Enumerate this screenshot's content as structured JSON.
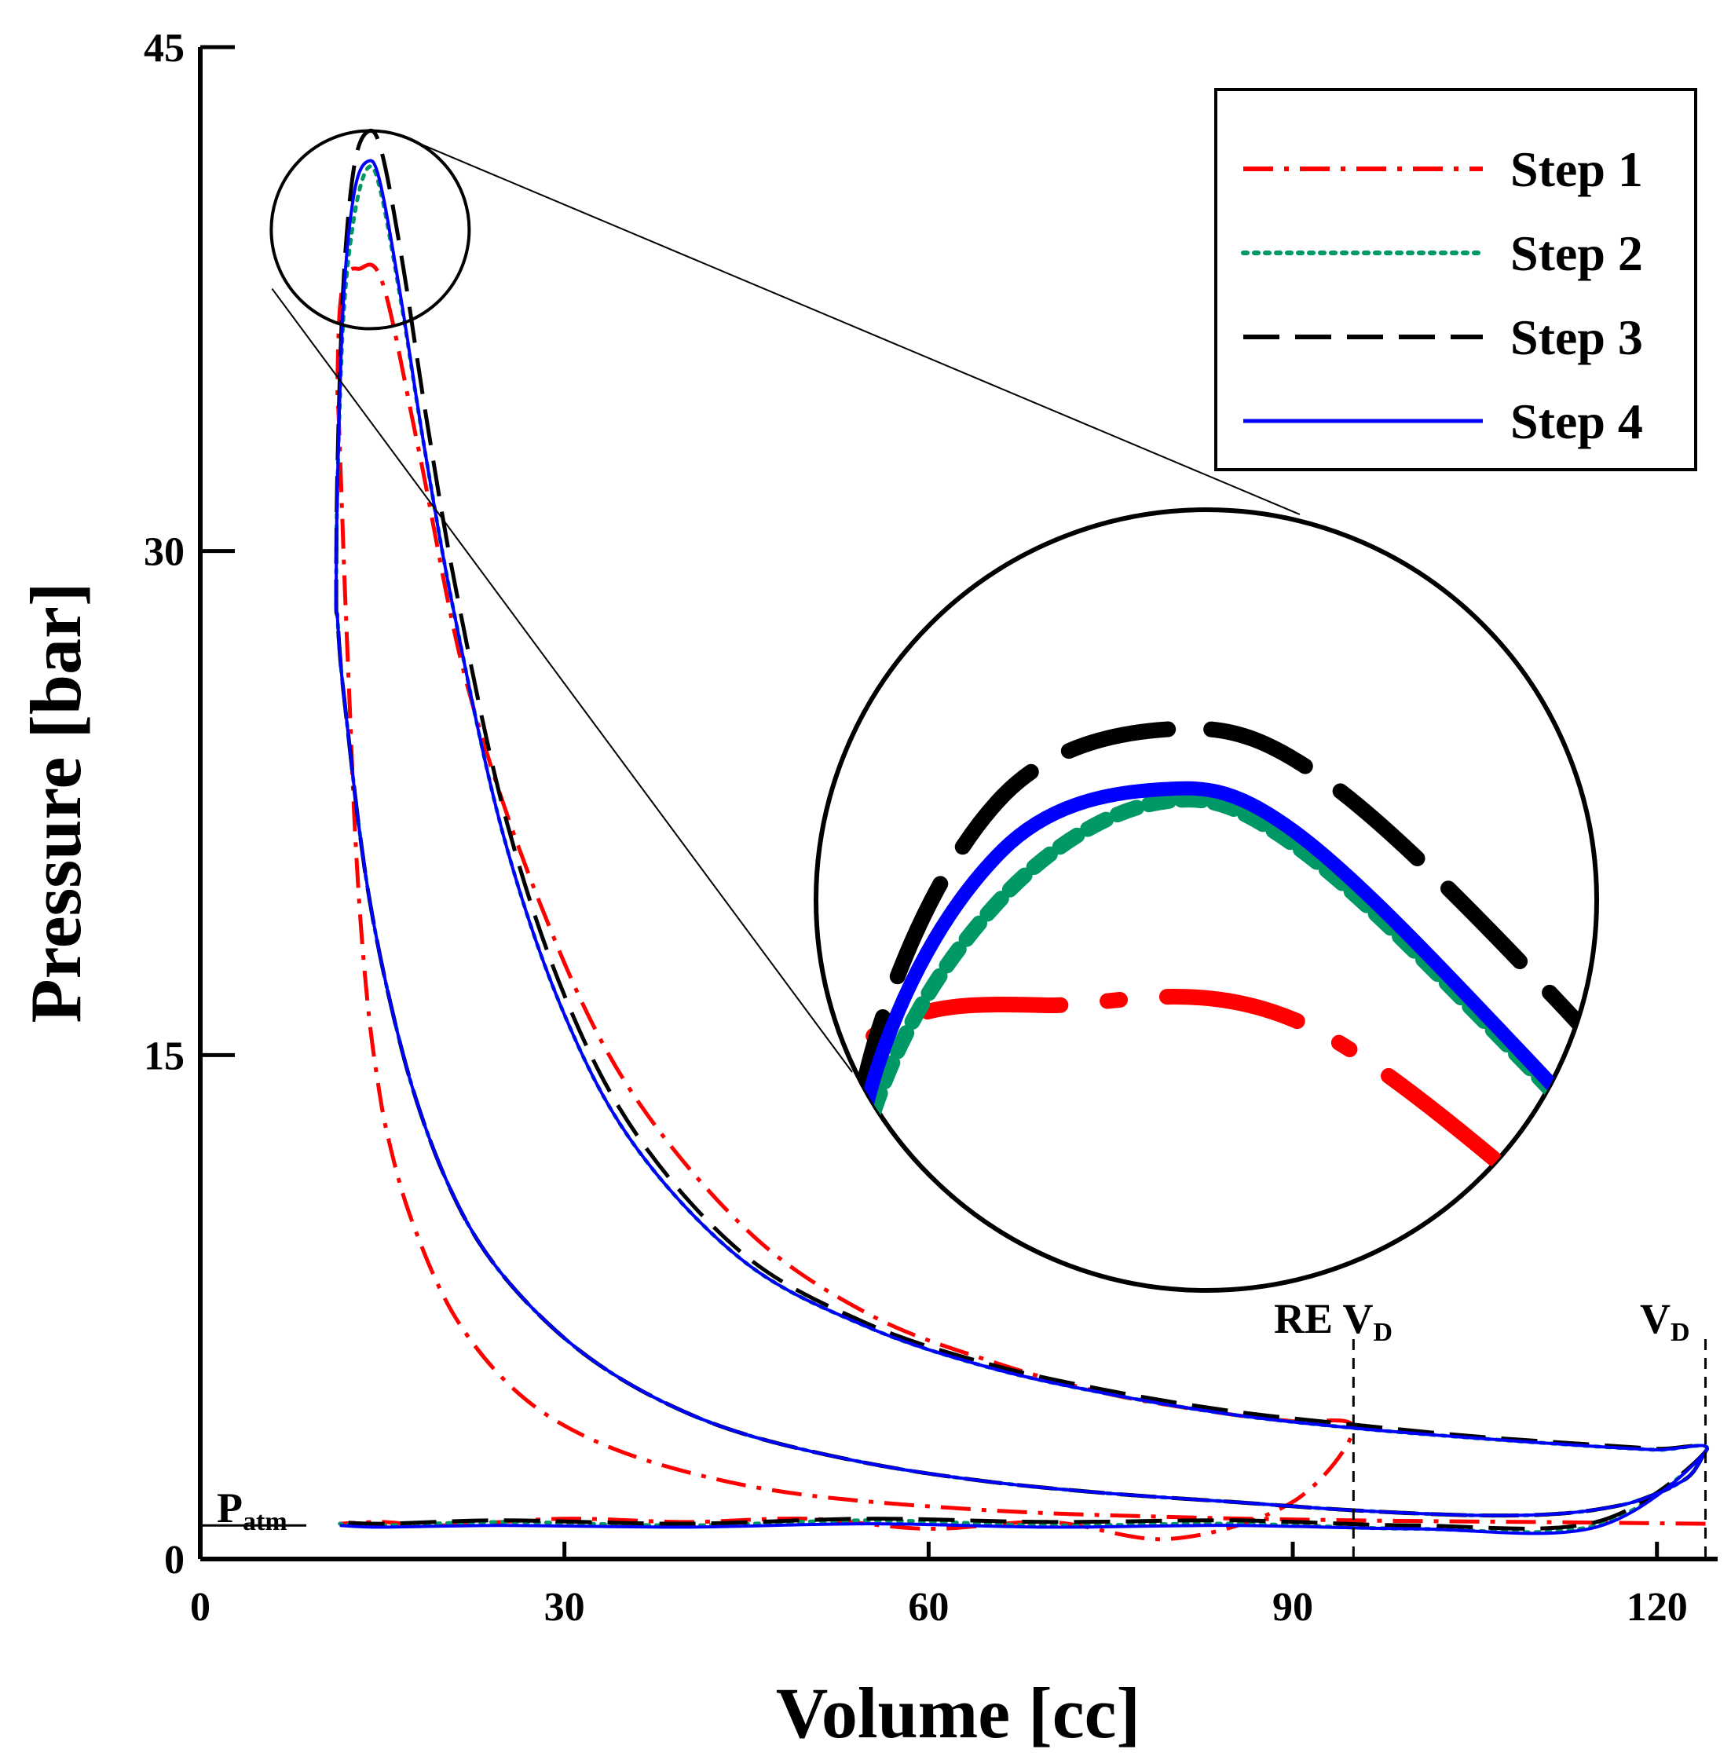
{
  "chart_data": {
    "type": "line",
    "title": "",
    "xlabel": "Volume [cc]",
    "ylabel": "Pressure [bar]",
    "xlim": [
      0,
      125
    ],
    "ylim": [
      0,
      45
    ],
    "xticks": [
      0,
      30,
      60,
      90,
      120
    ],
    "yticks": [
      0,
      15,
      30,
      45
    ],
    "xtick_labels": [
      "0",
      "30",
      "60",
      "90",
      "120"
    ],
    "ytick_labels": [
      "0",
      "15",
      "30",
      "45"
    ],
    "legend_position": "top-right",
    "series": [
      {
        "name": "Step 1",
        "style": "dash-dot",
        "color": "#ff0000",
        "x": [
          124,
          110,
          95,
          80,
          65,
          50,
          40,
          32,
          26,
          21,
          17.5,
          15.5,
          14.5,
          13.8,
          13.2,
          12.7,
          12.3,
          11.9,
          11.6,
          11.4,
          11.3,
          11.5,
          12,
          13,
          15,
          18,
          22,
          28,
          35,
          45,
          55,
          65,
          75,
          85,
          90,
          95,
          90,
          80,
          70,
          60,
          50,
          40,
          30,
          20,
          15,
          11.5
        ],
        "y": [
          1.05,
          1.1,
          1.15,
          1.25,
          1.45,
          1.9,
          2.6,
          3.6,
          5.0,
          7.2,
          10.0,
          12.5,
          14.5,
          16.5,
          19.0,
          22.0,
          25.5,
          29.0,
          32.0,
          34.0,
          35.0,
          37.2,
          38.2,
          38.4,
          38.0,
          33.0,
          26.0,
          19.5,
          14.2,
          9.8,
          7.3,
          5.9,
          4.9,
          4.3,
          4.1,
          3.9,
          1.7,
          0.6,
          1.1,
          0.9,
          1.2,
          1.1,
          1.2,
          1.0,
          1.1,
          1.05
        ],
        "labels": []
      },
      {
        "name": "Step 2",
        "style": "dotted",
        "color": "#009966",
        "x": [
          124,
          123,
          122,
          120,
          117,
          112,
          105,
          95,
          85,
          75,
          65,
          55,
          45,
          38,
          32,
          27,
          23,
          20,
          17.5,
          15.5,
          14,
          13,
          12.2,
          11.6,
          11.3,
          11.2,
          11.3,
          11.8,
          12.7,
          13.8,
          14.8,
          16.5,
          18.5,
          21,
          25,
          30,
          36,
          45,
          55,
          65,
          75,
          85,
          95,
          105,
          115,
          120,
          124,
          115,
          100,
          85,
          70,
          55,
          40,
          25,
          15,
          11.5
        ],
        "y": [
          3.2,
          2.6,
          2.3,
          1.95,
          1.6,
          1.35,
          1.3,
          1.45,
          1.7,
          1.95,
          2.3,
          2.85,
          3.7,
          4.7,
          6.0,
          7.6,
          9.4,
          11.5,
          14.0,
          16.8,
          19.5,
          22.0,
          24.5,
          26.5,
          28.0,
          28.6,
          32.0,
          37.0,
          40.0,
          41.4,
          40.8,
          37.5,
          33.0,
          28.0,
          21.5,
          16.2,
          12.2,
          8.8,
          6.9,
          5.7,
          4.9,
          4.3,
          3.9,
          3.6,
          3.35,
          3.25,
          3.2,
          1.0,
          0.9,
          1.05,
          1.0,
          1.15,
          1.0,
          1.1,
          1.0,
          1.05
        ],
        "labels": []
      },
      {
        "name": "Step 3",
        "style": "dashed",
        "color": "#000000",
        "x": [
          124,
          123,
          122,
          120,
          117,
          112,
          105,
          95,
          85,
          75,
          65,
          55,
          45,
          38,
          32,
          27,
          23,
          20,
          17.5,
          15.5,
          14,
          13,
          12.2,
          11.6,
          11.3,
          11.2,
          11.3,
          11.8,
          12.7,
          13.9,
          15,
          16.7,
          18.7,
          21.2,
          25.2,
          30.2,
          36.2,
          45,
          55,
          65,
          75,
          85,
          95,
          105,
          115,
          120,
          124,
          115,
          100,
          85,
          70,
          55,
          40,
          25,
          15,
          11.5
        ],
        "y": [
          3.2,
          2.6,
          2.3,
          1.95,
          1.6,
          1.35,
          1.3,
          1.45,
          1.7,
          1.95,
          2.3,
          2.85,
          3.7,
          4.7,
          6.0,
          7.6,
          9.4,
          11.5,
          14.0,
          16.8,
          19.5,
          22.0,
          24.5,
          26.5,
          28.0,
          28.6,
          32.5,
          38.0,
          41.5,
          42.5,
          41.8,
          38.5,
          33.8,
          28.6,
          22.0,
          16.6,
          12.5,
          9.0,
          7.0,
          5.8,
          5.0,
          4.4,
          4.0,
          3.65,
          3.4,
          3.28,
          3.2,
          1.1,
          1.0,
          1.15,
          1.1,
          1.2,
          1.05,
          1.15,
          1.05,
          1.1
        ],
        "labels": []
      },
      {
        "name": "Step 4",
        "style": "solid",
        "color": "#0000ff",
        "x": [
          124,
          123,
          122,
          120,
          117,
          112,
          105,
          95,
          85,
          75,
          65,
          55,
          45,
          38,
          32,
          27,
          23,
          20,
          17.5,
          15.5,
          14,
          13,
          12.2,
          11.6,
          11.3,
          11.2,
          11.3,
          11.8,
          12.7,
          13.8,
          14.8,
          16.5,
          18.5,
          21,
          25,
          30,
          36,
          45,
          55,
          65,
          75,
          85,
          95,
          105,
          115,
          120,
          124,
          115,
          100,
          85,
          70,
          55,
          40,
          25,
          15,
          11.5
        ],
        "y": [
          3.2,
          2.6,
          2.3,
          1.95,
          1.6,
          1.35,
          1.3,
          1.45,
          1.7,
          1.95,
          2.3,
          2.85,
          3.7,
          4.7,
          6.0,
          7.6,
          9.4,
          11.5,
          14.0,
          16.8,
          19.5,
          22.0,
          24.5,
          26.5,
          28.0,
          28.6,
          32.0,
          37.5,
          40.7,
          41.6,
          41.0,
          37.6,
          33.0,
          28.0,
          21.5,
          16.2,
          12.2,
          8.8,
          6.9,
          5.7,
          4.9,
          4.3,
          3.9,
          3.6,
          3.35,
          3.25,
          3.2,
          0.95,
          0.9,
          1.0,
          0.95,
          1.05,
          0.95,
          1.0,
          0.95,
          1.0
        ],
        "labels": []
      }
    ],
    "annotations": {
      "p_atm": {
        "main": "P",
        "sub": "atm",
        "y": 1.0
      },
      "re_vd": {
        "main": "RE V",
        "sub": "D",
        "x": 95
      },
      "vd": {
        "main": "V",
        "sub": "D",
        "x": 124
      }
    },
    "zoom": {
      "center": [
        14,
        41.2
      ],
      "source_label": "",
      "target_label": ""
    }
  }
}
